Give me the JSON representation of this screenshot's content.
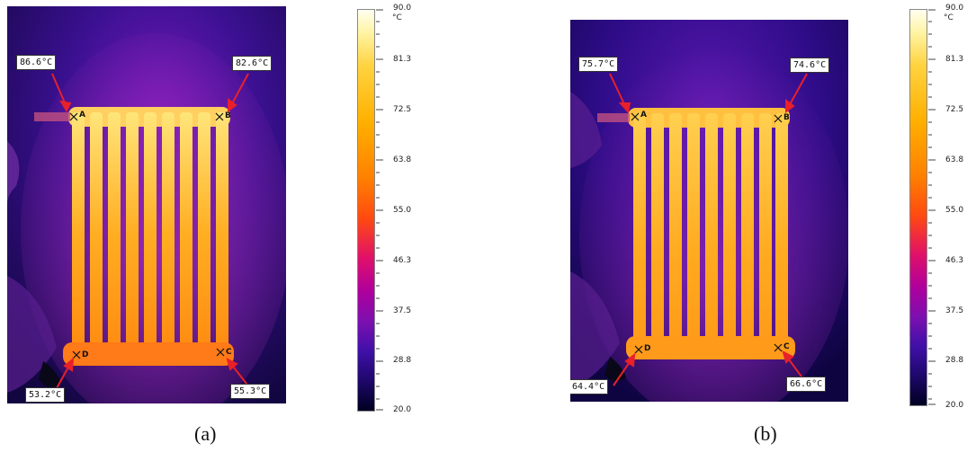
{
  "colors": {
    "palette_top": "#fffff0",
    "palette_mid_high": "#ffb000",
    "palette_mid": "#ff5a00",
    "palette_mid_low": "#c0008c",
    "palette_low": "#3a0aa0",
    "palette_bottom": "#000020",
    "radiator": "#ff9d10",
    "radiator_highlight": "#ffe070",
    "background_dark": "#1a0a55",
    "arrow": "#e8202a"
  },
  "panels": [
    {
      "caption": "(a)",
      "scale": {
        "max": "90.0",
        "unit": "°C",
        "ticks": [
          "81.3",
          "72.5",
          "63.8",
          "55.0",
          "46.3",
          "37.5",
          "28.8"
        ],
        "min": "20.0"
      },
      "points": [
        {
          "letter": "A",
          "temp": "86.6°C"
        },
        {
          "letter": "B",
          "temp": "82.6°C"
        },
        {
          "letter": "C",
          "temp": "55.3°C"
        },
        {
          "letter": "D",
          "temp": "53.2°C"
        }
      ]
    },
    {
      "caption": "(b)",
      "scale": {
        "max": "90.0",
        "unit": "°C",
        "ticks": [
          "81.3",
          "72.5",
          "63.8",
          "55.0",
          "46.3",
          "37.5",
          "28.8"
        ],
        "min": "20.0"
      },
      "points": [
        {
          "letter": "A",
          "temp": "75.7°C"
        },
        {
          "letter": "B",
          "temp": "74.6°C"
        },
        {
          "letter": "C",
          "temp": "66.6°C"
        },
        {
          "letter": "D",
          "temp": "64.4°C"
        }
      ]
    }
  ]
}
